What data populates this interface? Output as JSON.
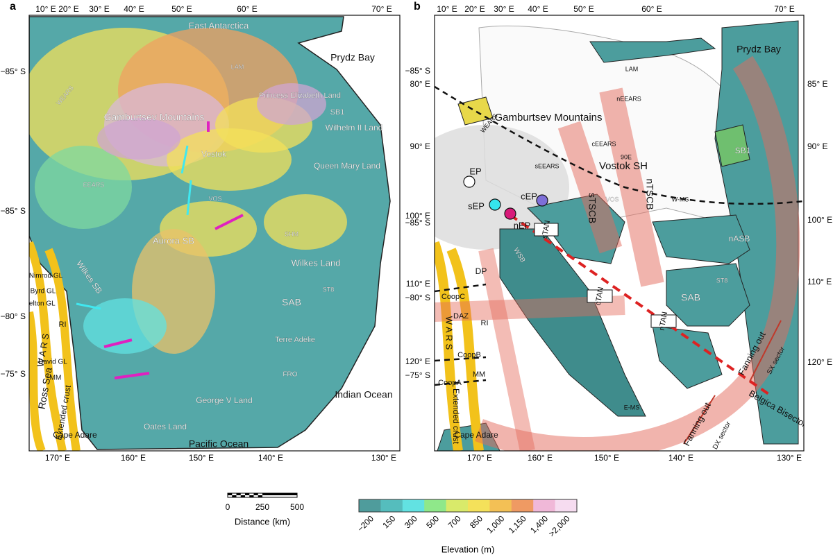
{
  "panel_a": {
    "letter": "a",
    "top_lon": [
      "10° E",
      "20° E",
      "30° E",
      "40° E",
      "50° E",
      "60° E",
      "70° E"
    ],
    "bottom_lon": [
      "170° E",
      "160° E",
      "150° E",
      "140° E",
      "130° E"
    ],
    "left_lat": [
      "−85° S",
      "−85° S",
      "−80° S",
      "−75° S"
    ],
    "labels": [
      "East Antarctica",
      "Prydz Bay",
      "Princess Elizabeth Land",
      "Gamburtsev Mountains",
      "Vostok",
      "Wilhelm II Land",
      "Queen Mary Land",
      "Aurora SB",
      "Wilkes Land",
      "SAB",
      "Terre Adélie",
      "George V Land",
      "Oates Land",
      "Pacific Ocean",
      "Indian Ocean",
      "Ross Sea",
      "W A R S",
      "Extended crust",
      "Cape Adare",
      "Nimrod GL",
      "Byrd GL",
      "Skelton GL",
      "RI",
      "David GL",
      "MM",
      "Wilkes SB",
      "EEARS",
      "WEARS",
      "LAM",
      "SB1",
      "VOS",
      "SHM",
      "ST8",
      "FRO"
    ]
  },
  "middle_axis": [
    "−85° S",
    "80° E",
    "90° E",
    "100° E",
    "−85° S",
    "110° E",
    "−80° S",
    "120° E",
    "−75° S"
  ],
  "panel_b": {
    "letter": "b",
    "top_lon": [
      "10° E",
      "20° E",
      "30° E",
      "40° E",
      "50° E",
      "60° E",
      "70° E"
    ],
    "bottom_lon": [
      "170° E",
      "160° E",
      "150° E",
      "140° E",
      "130° E"
    ],
    "right_lat": [
      "85° E",
      "90° E",
      "100° E",
      "110° E",
      "120° E"
    ],
    "labels": [
      "Prydz Bay",
      "LAM",
      "Gamburtsev Mountains",
      "Vostok SH",
      "WEARS",
      "sEEARS",
      "cEEARS",
      "nEEARS",
      "90E",
      "SB1",
      "EP",
      "sEP",
      "cEP",
      "nEP",
      "sTSCB",
      "nTSCB",
      "sTAN",
      "cTAN",
      "nTAN",
      "W-MS",
      "E-MS",
      "nASB",
      "SAB",
      "ST8",
      "DP",
      "CoopC",
      "CoopB",
      "CoopA",
      "DAZ",
      "RI",
      "MM",
      "W A R S",
      "Extended crust",
      "Cape Adare",
      "Fanning out",
      "Fanning out",
      "SX sector",
      "DX sector",
      "Belgica Bisector",
      "VOS",
      "WSB"
    ]
  },
  "scale_bar": {
    "ticks": [
      "0",
      "250",
      "500"
    ],
    "title": "Distance (km)"
  },
  "colorbar": {
    "title": "Elevation (m)",
    "ticks": [
      "−200",
      "150",
      "300",
      "500",
      "700",
      "850",
      "1,000",
      "1,150",
      "1,400",
      ">2,000"
    ],
    "colors": [
      "#4f9c9c",
      "#55bdbd",
      "#62e2e2",
      "#8fe88a",
      "#d9ea6a",
      "#f4e15a",
      "#f3c055",
      "#ef9a63",
      "#f0b8d8",
      "#f6dcf0"
    ]
  }
}
